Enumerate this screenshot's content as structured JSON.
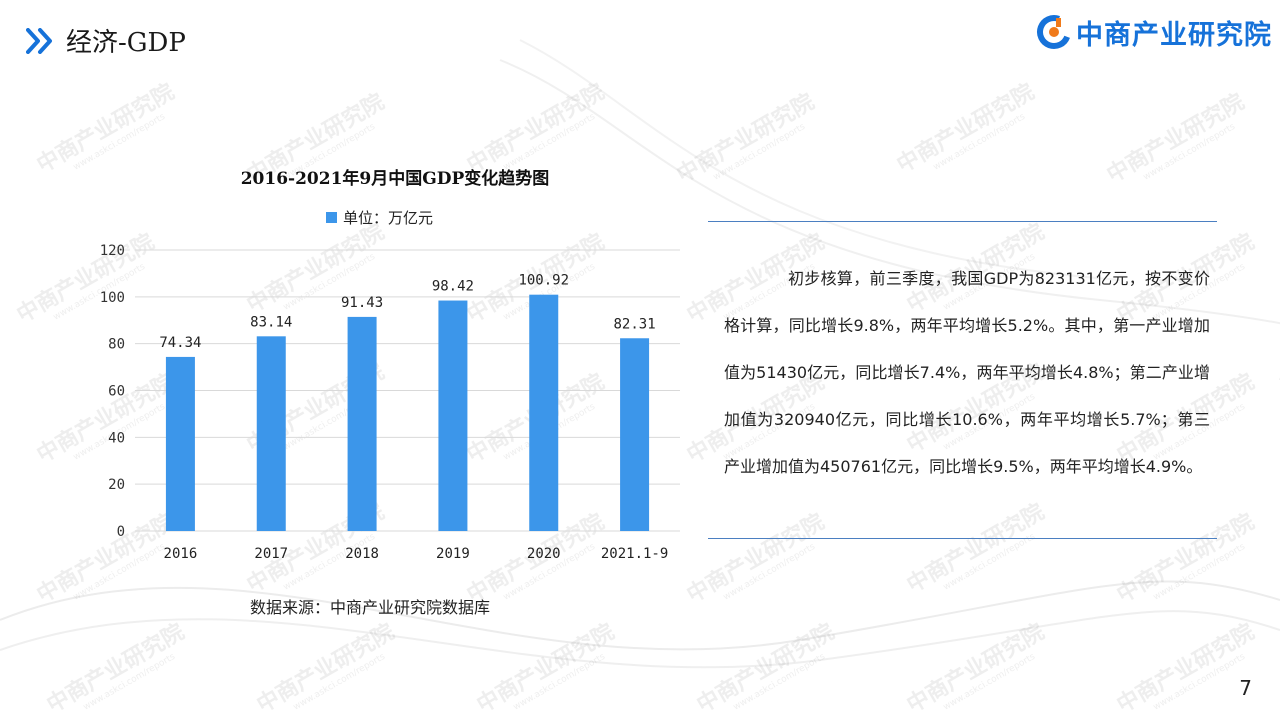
{
  "header": {
    "section_title": "经济-GDP",
    "logo_text": "中商产业研究院",
    "chevron_icon": "double-chevron-right-icon",
    "accent_color": "#1672d9"
  },
  "watermark": {
    "text": "中商产业研究院",
    "sub": "www.askci.com/reports"
  },
  "chart_data": {
    "type": "bar",
    "title": "2016-2021年9月中国GDP变化趋势图",
    "legend": "单位：万亿元",
    "categories": [
      "2016",
      "2017",
      "2018",
      "2019",
      "2020",
      "2021.1-9"
    ],
    "values": [
      74.34,
      83.14,
      91.43,
      98.42,
      100.92,
      82.31
    ],
    "data_labels": [
      "74.34",
      "83.14",
      "91.43",
      "98.42",
      "100.92",
      "82.31"
    ],
    "ylim": [
      0,
      120
    ],
    "yticks": [
      0,
      20,
      40,
      60,
      80,
      100,
      120
    ],
    "grid": true,
    "legend_position": "top",
    "bar_color": "#3c96ea"
  },
  "source": "数据来源：中商产业研究院数据库",
  "description": "初步核算，前三季度，我国GDP为823131亿元，按不变价格计算，同比增长9.8%，两年平均增长5.2%。其中，第一产业增加值为51430亿元，同比增长7.4%，两年平均增长4.8%；第二产业增加值为320940亿元，同比增长10.6%，两年平均增长5.7%；第三产业增加值为450761亿元，同比增长9.5%，两年平均增长4.9%。",
  "page_number": "7"
}
